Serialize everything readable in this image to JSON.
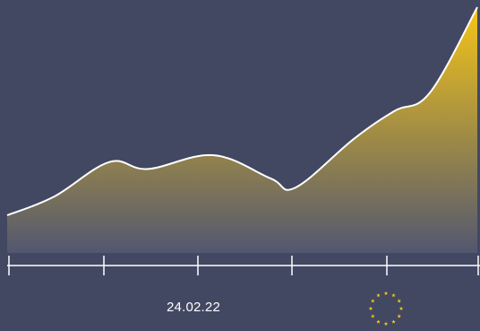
{
  "chart_data": {
    "type": "area",
    "x_ticks": 6,
    "values": [
      0.1,
      0.18,
      0.33,
      0.3,
      0.36,
      0.26,
      0.22,
      0.43,
      0.55,
      0.63,
      1.0
    ],
    "ylim": [
      0,
      1
    ],
    "annotations": [
      {
        "label": "24.02.22"
      },
      {
        "label": "",
        "icon": "eu-flag-stars-icon"
      }
    ],
    "grid": false,
    "legend": "none"
  },
  "colors": {
    "background": "#424862",
    "fill_top": "#f5c518",
    "fill_bottom": "#525770",
    "line": "#ffffff",
    "axis": "#ffffff",
    "stars": "#f5c518"
  }
}
